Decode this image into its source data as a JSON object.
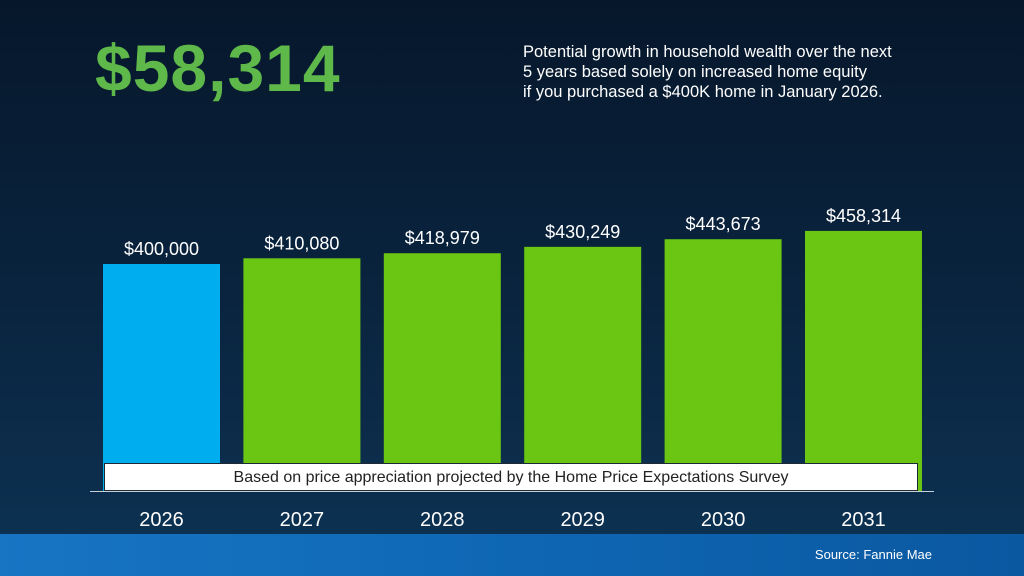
{
  "headline": "$58,314",
  "subtitle_lines": [
    "Potential growth in household wealth over the next",
    "5 years based solely on increased home equity",
    "if you purchased a $400K home in January 2026."
  ],
  "note": "Based on price appreciation projected by the Home Price Expectations Survey",
  "source": "Source: Fannie Mae",
  "colors": {
    "headline": "#5fb84a",
    "highlight_bar": "#00aeef",
    "bar": "#6ac613"
  },
  "chart_data": {
    "type": "bar",
    "title": "",
    "xlabel": "",
    "ylabel": "",
    "categories": [
      "2026",
      "2027",
      "2028",
      "2029",
      "2030",
      "2031"
    ],
    "values": [
      400000,
      410080,
      418979,
      430249,
      443673,
      458314
    ],
    "value_labels": [
      "$400,000",
      "$410,080",
      "$418,979",
      "$430,249",
      "$443,673",
      "$458,314"
    ],
    "highlight_index": 0,
    "ylim": [
      0,
      600000
    ],
    "grid": false,
    "legend": false
  }
}
